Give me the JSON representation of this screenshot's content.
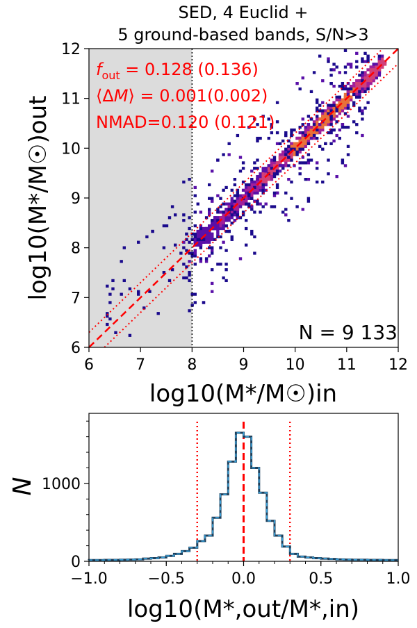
{
  "chart_data": [
    {
      "type": "heatmap",
      "title_line1": "SED, 4 Euclid +",
      "title_line2": "5 ground-based bands, S/N>3",
      "xlabel": "log10(M*/M☉)in",
      "ylabel": "log10(M*/M☉)out",
      "xlim": [
        6,
        12
      ],
      "ylim": [
        6,
        12
      ],
      "xticks": [
        "6",
        "7",
        "8",
        "9",
        "10",
        "11",
        "12"
      ],
      "yticks": [
        "6",
        "7",
        "8",
        "9",
        "10",
        "11",
        "12"
      ],
      "shaded_region_x": [
        6,
        8
      ],
      "mass_cut": 8,
      "one_to_one_line": [
        [
          6,
          6
        ],
        [
          12,
          12
        ]
      ],
      "outlier_offset_dex": 0.3,
      "stats": {
        "f_out": "0.128 (0.136)",
        "mean_dm": "0.001(0.002)",
        "nmad": "NMAD=0.120 (0.121)"
      },
      "n_label": "N = 9 133",
      "n_value": 9133,
      "density_ridge": {
        "from": [
          8,
          8
        ],
        "to": [
          11.7,
          11.7
        ],
        "peak": [
          10.5,
          10.5
        ]
      },
      "accent_color": "#ff0000",
      "colormap": [
        "#1a0a8c",
        "#5a10a8",
        "#a0209a",
        "#d0407a",
        "#e8703a"
      ]
    },
    {
      "type": "bar",
      "style": "step-histogram",
      "xlabel": "log10(M*,out/M*,in)",
      "ylabel": "N",
      "xlim": [
        -1.0,
        1.0
      ],
      "ylim": [
        0,
        1900
      ],
      "xticks": [
        "−1.0",
        "−0.5",
        "0.0",
        "0.5",
        "1.0"
      ],
      "yticks": [
        "0",
        "1000"
      ],
      "bin_edges": [
        -1.0,
        -0.95,
        -0.9,
        -0.85,
        -0.8,
        -0.75,
        -0.7,
        -0.65,
        -0.6,
        -0.55,
        -0.5,
        -0.45,
        -0.4,
        -0.35,
        -0.3,
        -0.25,
        -0.2,
        -0.15,
        -0.1,
        -0.05,
        0.0,
        0.05,
        0.1,
        0.15,
        0.2,
        0.25,
        0.3,
        0.35,
        0.4,
        0.45,
        0.5,
        0.55,
        0.6,
        0.65,
        0.7,
        0.75,
        0.8,
        0.85,
        0.9,
        0.95,
        1.0
      ],
      "values": [
        15,
        15,
        18,
        18,
        20,
        22,
        25,
        35,
        40,
        50,
        70,
        95,
        130,
        175,
        260,
        330,
        560,
        860,
        1280,
        1650,
        1600,
        1200,
        880,
        520,
        330,
        190,
        95,
        60,
        50,
        40,
        35,
        30,
        25,
        22,
        20,
        20,
        18,
        18,
        15,
        15
      ],
      "vlines": [
        {
          "x": 0.0,
          "style": "dashed",
          "color": "#ff0000"
        },
        {
          "x": -0.3,
          "style": "dotted",
          "color": "#ff0000"
        },
        {
          "x": 0.3,
          "style": "dotted",
          "color": "#ff0000"
        }
      ],
      "line_color": "#1f3f5a",
      "overlay_color": "#3aa0d8"
    }
  ]
}
